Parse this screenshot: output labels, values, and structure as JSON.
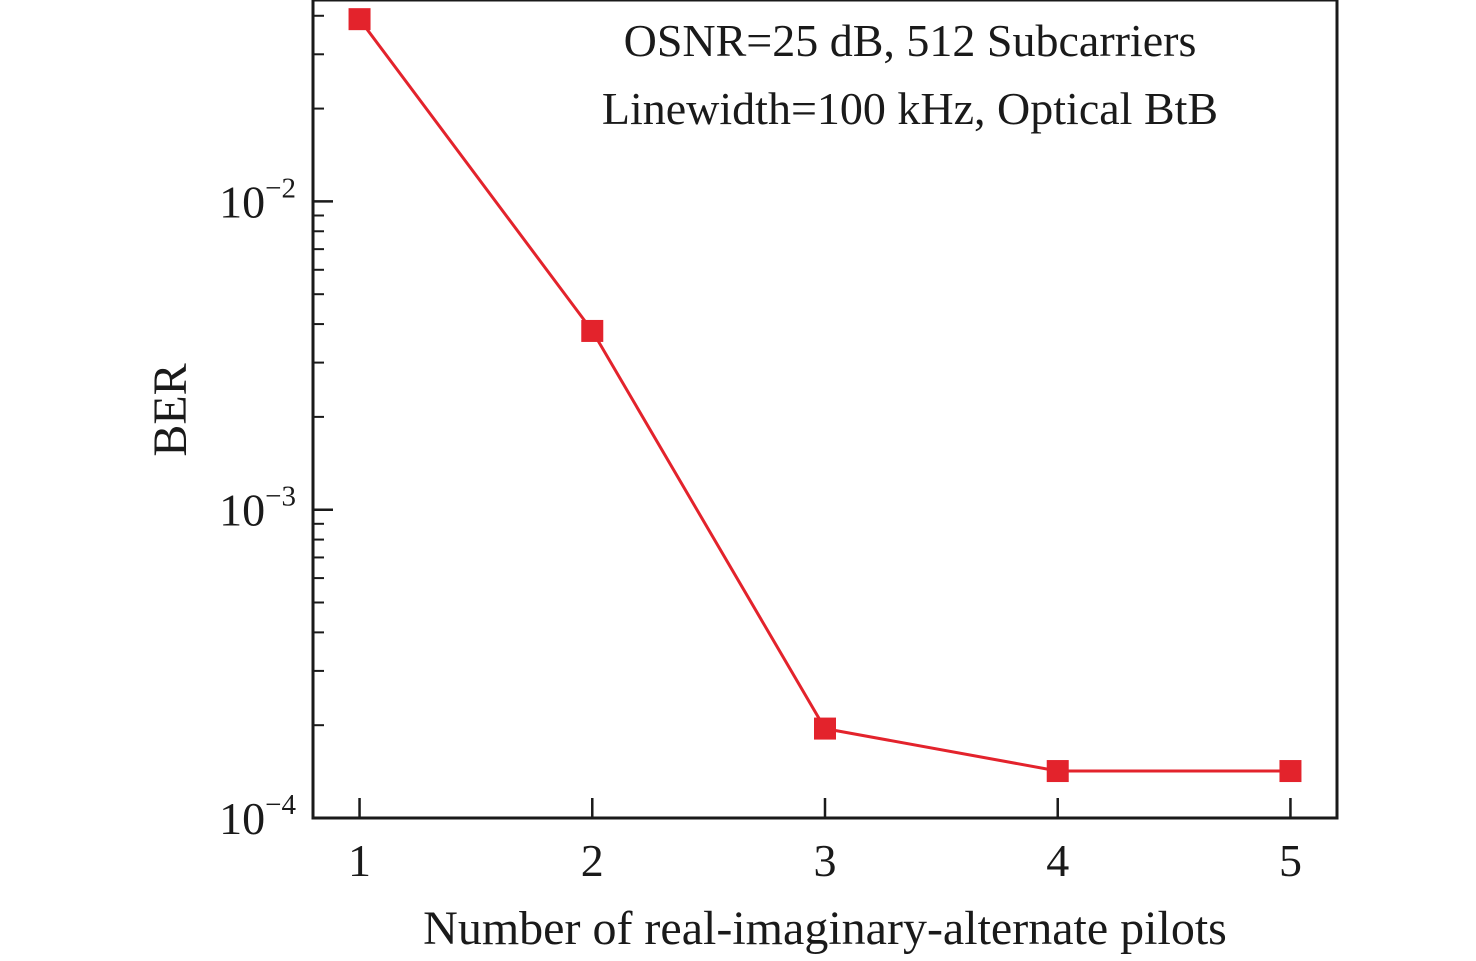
{
  "chart_data": {
    "type": "line",
    "xlabel": "Number of real-imaginary-alternate pilots",
    "ylabel": "BER",
    "annotations": [
      "OSNR=25 dB, 512 Subcarriers",
      "Linewidth=100 kHz, Optical BtB"
    ],
    "xlim": [
      0.8,
      5.2
    ],
    "ylim": [
      0.0001,
      0.045
    ],
    "yscale": "log",
    "grid": false,
    "x_ticks": [
      1,
      2,
      3,
      4,
      5
    ],
    "x_tick_labels": [
      "1",
      "2",
      "3",
      "4",
      "5"
    ],
    "y_ticks": [
      {
        "value": 0.01,
        "base": "10",
        "exp": "−2"
      },
      {
        "value": 0.001,
        "base": "10",
        "exp": "−3"
      },
      {
        "value": 0.0001,
        "base": "10",
        "exp": "−4"
      }
    ],
    "series": [
      {
        "color": "#e3232c",
        "marker": "square",
        "x": [
          1,
          2,
          3,
          4,
          5
        ],
        "values": [
          0.039,
          0.0038,
          0.000195,
          0.000142,
          0.000142
        ]
      }
    ]
  }
}
